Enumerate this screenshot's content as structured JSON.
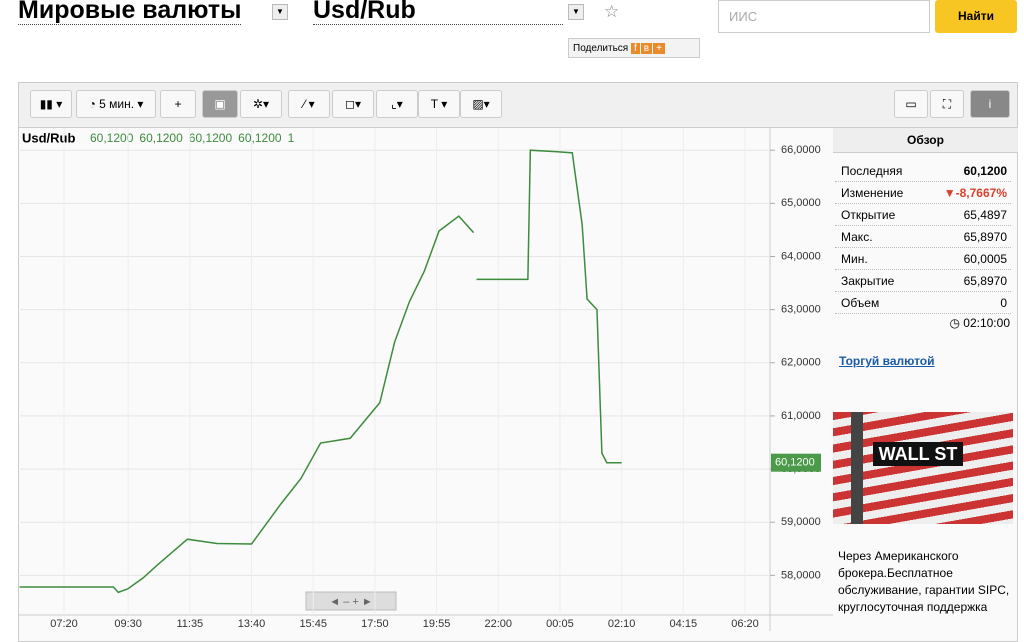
{
  "header": {
    "market": "Мировые валюты",
    "pair": "Usd/Rub",
    "search_placeholder": "ИИС",
    "search_button": "Найти",
    "share": "Поделиться"
  },
  "toolbar": {
    "interval": "5 мин."
  },
  "chart_data": {
    "type": "line",
    "legend": {
      "symbol": "Usd/Rub",
      "values": [
        "60,1200",
        "60,1200",
        "60,1200",
        "60,1200",
        "1"
      ]
    },
    "color": "#3d8b3d",
    "x": [
      "05:50",
      "09:00",
      "09:10",
      "09:30",
      "10:00",
      "10:30",
      "11:30",
      "12:30",
      "13:40",
      "14:40",
      "15:20",
      "16:00",
      "17:00",
      "18:00",
      "18:30",
      "19:00",
      "19:30",
      "20:00",
      "20:40",
      "21:10",
      "21:13",
      "21:16",
      "23:00",
      "23:05",
      "00:00",
      "00:30",
      "00:50",
      "01:00",
      "01:20",
      "01:30",
      "01:40",
      "02:10"
    ],
    "values": [
      57.78,
      57.78,
      57.68,
      57.75,
      57.95,
      58.2,
      58.68,
      58.6,
      58.59,
      59.35,
      59.82,
      60.49,
      60.58,
      61.25,
      62.39,
      63.15,
      63.72,
      64.48,
      64.76,
      64.45,
      null,
      63.57,
      63.57,
      66.0,
      65.97,
      65.95,
      64.6,
      63.2,
      63.0,
      60.3,
      60.12,
      60.12
    ],
    "ylim": [
      57.16,
      66.38
    ],
    "yticks": [
      {
        "value": 58,
        "label": "58,0000"
      },
      {
        "value": 59,
        "label": "59,0000"
      },
      {
        "value": 60,
        "label": "60,0000"
      },
      {
        "value": 61,
        "label": "61,0000"
      },
      {
        "value": 62,
        "label": "62,0000"
      },
      {
        "value": 63,
        "label": "63,0000"
      },
      {
        "value": 64,
        "label": "64,0000"
      },
      {
        "value": 65,
        "label": "65,0000"
      },
      {
        "value": 66,
        "label": "66,0000"
      }
    ],
    "xticks": [
      "07:20",
      "09:30",
      "11:35",
      "13:40",
      "15:45",
      "17:50",
      "19:55",
      "22:00",
      "00:05",
      "02:10",
      "04:15",
      "06:20"
    ],
    "last": {
      "value": 60.12,
      "label": "60,1200"
    },
    "grid": true
  },
  "overview": {
    "title": "Обзор",
    "rows": [
      [
        "Последняя",
        "60,1200"
      ],
      [
        "Изменение",
        "▼-8,7667%"
      ],
      [
        "Открытие",
        "65,4897"
      ],
      [
        "Макс.",
        "65,8970"
      ],
      [
        "Мин.",
        "60,0005"
      ],
      [
        "Закрытие",
        "65,8970"
      ],
      [
        "Объем",
        "0"
      ]
    ],
    "time": "02:10:00"
  },
  "link": "Торгуй валютой",
  "ad": {
    "image_text": "WALL ST",
    "text": "Через Американского брокера.Бесплатное обслуживание, гарантии SIPC, круглосуточная поддержка"
  }
}
